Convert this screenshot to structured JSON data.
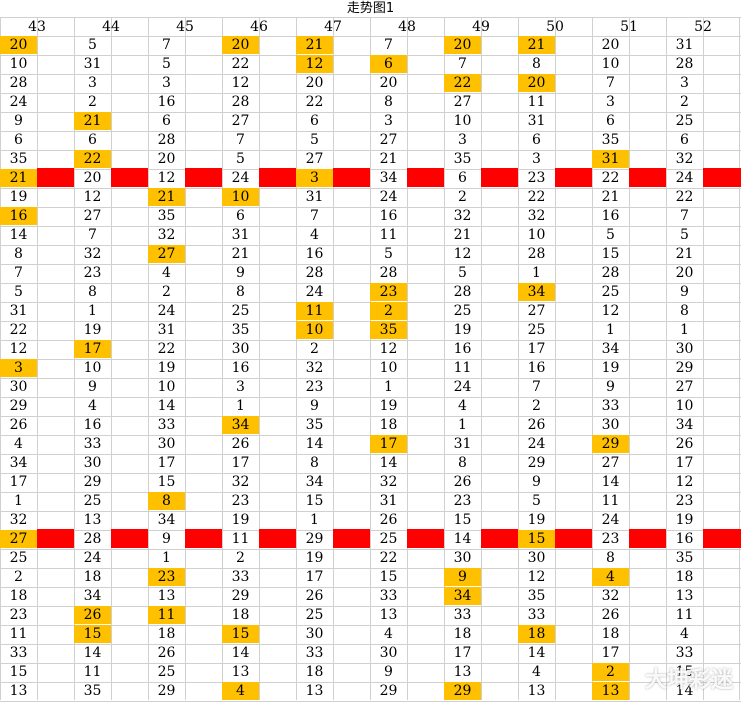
{
  "sheet_title": "走势图1",
  "columns": [
    "43",
    "44",
    "45",
    "46",
    "47",
    "48",
    "49",
    "50",
    "51",
    "52"
  ],
  "highlight_color": "#ffc000",
  "separator_color": "#ff0000",
  "rows": [
    [
      "20",
      "5",
      "7",
      "20",
      "21",
      "7",
      "20",
      "21",
      "20",
      "31"
    ],
    [
      "10",
      "31",
      "5",
      "22",
      "12",
      "6",
      "7",
      "8",
      "10",
      "28"
    ],
    [
      "28",
      "3",
      "3",
      "12",
      "20",
      "20",
      "22",
      "20",
      "7",
      "3"
    ],
    [
      "24",
      "2",
      "16",
      "28",
      "22",
      "8",
      "27",
      "11",
      "3",
      "2"
    ],
    [
      "9",
      "21",
      "6",
      "27",
      "6",
      "3",
      "10",
      "31",
      "6",
      "25"
    ],
    [
      "6",
      "6",
      "28",
      "7",
      "5",
      "27",
      "3",
      "6",
      "35",
      "6"
    ],
    [
      "35",
      "22",
      "20",
      "5",
      "27",
      "21",
      "35",
      "3",
      "31",
      "32"
    ],
    [
      "21",
      "20",
      "12",
      "24",
      "3",
      "34",
      "6",
      "23",
      "22",
      "24"
    ],
    [
      "19",
      "12",
      "21",
      "10",
      "31",
      "24",
      "2",
      "22",
      "21",
      "22"
    ],
    [
      "16",
      "27",
      "35",
      "6",
      "7",
      "16",
      "32",
      "32",
      "16",
      "7"
    ],
    [
      "14",
      "7",
      "32",
      "31",
      "4",
      "11",
      "21",
      "10",
      "5",
      "5"
    ],
    [
      "8",
      "32",
      "27",
      "21",
      "16",
      "5",
      "12",
      "28",
      "15",
      "21"
    ],
    [
      "7",
      "23",
      "4",
      "9",
      "28",
      "28",
      "5",
      "1",
      "28",
      "20"
    ],
    [
      "5",
      "8",
      "2",
      "8",
      "24",
      "23",
      "28",
      "34",
      "25",
      "9"
    ],
    [
      "31",
      "1",
      "24",
      "25",
      "11",
      "2",
      "25",
      "27",
      "12",
      "8"
    ],
    [
      "22",
      "19",
      "31",
      "35",
      "10",
      "35",
      "19",
      "25",
      "1",
      "1"
    ],
    [
      "12",
      "17",
      "22",
      "30",
      "2",
      "12",
      "16",
      "17",
      "34",
      "30"
    ],
    [
      "3",
      "10",
      "19",
      "16",
      "32",
      "10",
      "11",
      "16",
      "19",
      "29"
    ],
    [
      "30",
      "9",
      "10",
      "3",
      "23",
      "1",
      "24",
      "7",
      "9",
      "27"
    ],
    [
      "29",
      "4",
      "14",
      "1",
      "9",
      "19",
      "4",
      "2",
      "33",
      "10"
    ],
    [
      "26",
      "16",
      "33",
      "34",
      "35",
      "18",
      "1",
      "26",
      "30",
      "34"
    ],
    [
      "4",
      "33",
      "30",
      "26",
      "14",
      "17",
      "31",
      "24",
      "29",
      "26"
    ],
    [
      "34",
      "30",
      "17",
      "17",
      "8",
      "14",
      "8",
      "29",
      "27",
      "17"
    ],
    [
      "17",
      "29",
      "15",
      "32",
      "34",
      "32",
      "26",
      "9",
      "14",
      "12"
    ],
    [
      "1",
      "25",
      "8",
      "23",
      "15",
      "31",
      "23",
      "5",
      "11",
      "23"
    ],
    [
      "32",
      "13",
      "34",
      "19",
      "1",
      "26",
      "15",
      "19",
      "24",
      "19"
    ],
    [
      "27",
      "28",
      "9",
      "11",
      "29",
      "25",
      "14",
      "15",
      "23",
      "16"
    ],
    [
      "25",
      "24",
      "1",
      "2",
      "19",
      "22",
      "30",
      "30",
      "8",
      "35"
    ],
    [
      "2",
      "18",
      "23",
      "33",
      "17",
      "15",
      "9",
      "12",
      "4",
      "18"
    ],
    [
      "18",
      "34",
      "13",
      "29",
      "26",
      "33",
      "34",
      "35",
      "32",
      "13"
    ],
    [
      "23",
      "26",
      "11",
      "18",
      "25",
      "13",
      "33",
      "33",
      "26",
      "11"
    ],
    [
      "11",
      "15",
      "18",
      "15",
      "30",
      "4",
      "18",
      "18",
      "18",
      "4"
    ],
    [
      "33",
      "14",
      "26",
      "14",
      "33",
      "30",
      "17",
      "14",
      "17",
      "33"
    ],
    [
      "15",
      "11",
      "25",
      "13",
      "18",
      "9",
      "13",
      "4",
      "2",
      "15"
    ],
    [
      "13",
      "35",
      "29",
      "4",
      "13",
      "29",
      "29",
      "13",
      "13",
      "14"
    ]
  ],
  "highlights": [
    [
      0,
      0
    ],
    [
      0,
      3
    ],
    [
      0,
      4
    ],
    [
      0,
      6
    ],
    [
      0,
      7
    ],
    [
      1,
      4
    ],
    [
      1,
      5
    ],
    [
      2,
      6
    ],
    [
      2,
      7
    ],
    [
      4,
      1
    ],
    [
      6,
      1
    ],
    [
      6,
      8
    ],
    [
      7,
      0
    ],
    [
      7,
      4
    ],
    [
      8,
      2
    ],
    [
      8,
      3
    ],
    [
      9,
      0
    ],
    [
      11,
      2
    ],
    [
      13,
      5
    ],
    [
      13,
      7
    ],
    [
      14,
      4
    ],
    [
      14,
      5
    ],
    [
      15,
      4
    ],
    [
      15,
      5
    ],
    [
      16,
      1
    ],
    [
      17,
      0
    ],
    [
      20,
      3
    ],
    [
      21,
      5
    ],
    [
      21,
      8
    ],
    [
      24,
      2
    ],
    [
      26,
      0
    ],
    [
      26,
      7
    ],
    [
      28,
      2
    ],
    [
      28,
      6
    ],
    [
      28,
      8
    ],
    [
      29,
      6
    ],
    [
      30,
      1
    ],
    [
      30,
      2
    ],
    [
      31,
      1
    ],
    [
      31,
      3
    ],
    [
      31,
      7
    ],
    [
      33,
      8
    ],
    [
      34,
      3
    ],
    [
      34,
      6
    ],
    [
      34,
      8
    ]
  ],
  "separator_rows": [
    7,
    26
  ],
  "watermark": "大坤彩迷"
}
